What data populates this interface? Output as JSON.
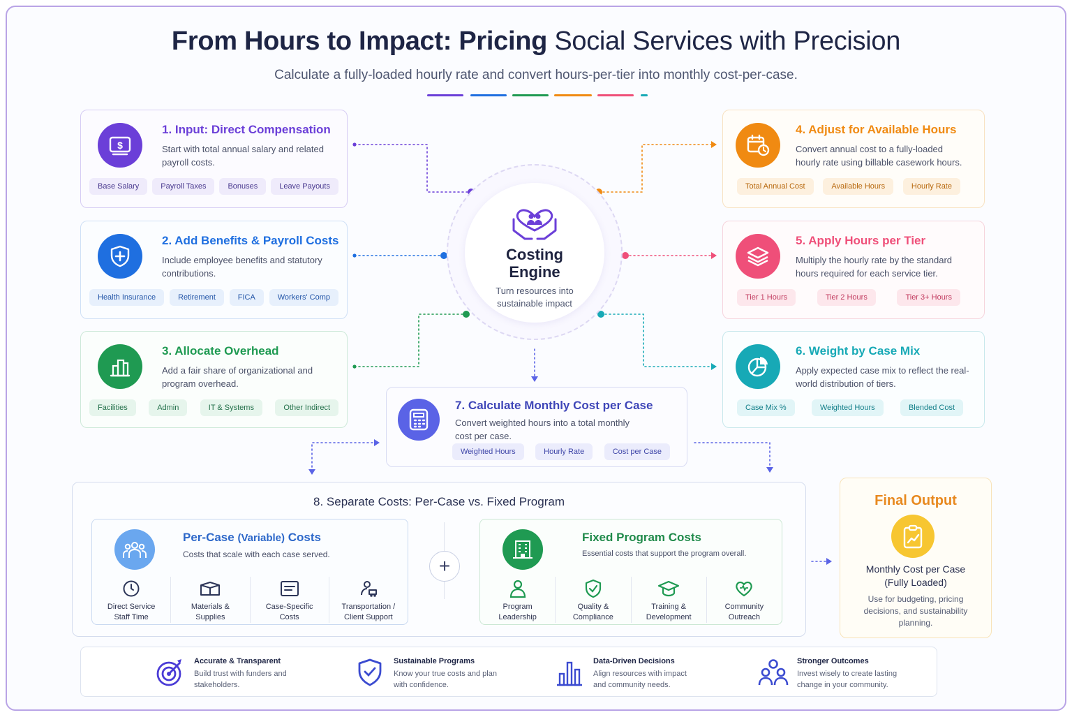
{
  "header": {
    "title_bold": "From Hours to Impact: Pricing",
    "title_light": "Social Services with Precision",
    "subtitle": "Calculate a fully-loaded hourly rate and convert hours-per-tier into monthly cost-per-case."
  },
  "colors": {
    "purple": "#6b3fd8",
    "blue": "#1f6fe0",
    "green": "#1f9a52",
    "orange": "#f08a12",
    "pink": "#ef4f79",
    "teal": "#17a9b6",
    "indigo": "#5a63e6"
  },
  "steps": [
    {
      "number": "1.",
      "title": "Input: Direct Compensation",
      "description": "Start with total annual salary and related payroll costs.",
      "icon": "money-icon",
      "chips": [
        "Base Salary",
        "Payroll Taxes",
        "Bonuses",
        "Leave Payouts"
      ]
    },
    {
      "number": "2.",
      "title": "Add Benefits & Payroll Costs",
      "description": "Include employee benefits and statutory contributions.",
      "icon": "shield-plus-icon",
      "chips": [
        "Health Insurance",
        "Retirement",
        "FICA",
        "Workers' Comp"
      ]
    },
    {
      "number": "3.",
      "title": "Allocate Overhead",
      "description": "Add a fair share of organizational and program overhead.",
      "icon": "building-icon",
      "chips": [
        "Facilities",
        "Admin",
        "IT & Systems",
        "Other Indirect"
      ]
    },
    {
      "number": "4.",
      "title": "Adjust for Available Hours",
      "description": "Convert annual cost to a fully-loaded hourly rate using billable casework hours.",
      "icon": "calendar-clock-icon",
      "chips": [
        "Total Annual Cost",
        "Available Hours",
        "Hourly Rate"
      ]
    },
    {
      "number": "5.",
      "title": "Apply Hours per Tier",
      "description": "Multiply the hourly rate by the standard hours required for each service tier.",
      "icon": "layers-icon",
      "chips": [
        "Tier 1 Hours",
        "Tier 2 Hours",
        "Tier 3+ Hours"
      ]
    },
    {
      "number": "6.",
      "title": "Weight by Case Mix",
      "description": "Apply expected case mix to reflect the real-world distribution of tiers.",
      "icon": "pie-chart-icon",
      "chips": [
        "Case Mix %",
        "Weighted Hours",
        "Blended Cost"
      ]
    },
    {
      "number": "7.",
      "title": "Calculate Monthly Cost per Case",
      "description": "Convert weighted hours into a total monthly cost per case.",
      "icon": "calculator-icon",
      "chips": [
        "Weighted Hours",
        "Hourly Rate",
        "Cost per Case"
      ]
    }
  ],
  "hub": {
    "title_line1": "Costing",
    "title_line2": "Engine",
    "description": "Turn resources into sustainable impact",
    "icon": "heart-hands-icon"
  },
  "section8": {
    "number": "8.",
    "title": "Separate Costs: Per-Case vs. Fixed Program",
    "variable": {
      "title_a": "Per-Case",
      "title_b": "(Variable)",
      "title_c": "Costs",
      "description": "Costs that scale with each case served.",
      "icon": "people-icon",
      "items": [
        {
          "line1": "Direct Service",
          "line2": "Staff Time",
          "icon": "clock-icon"
        },
        {
          "line1": "Materials &",
          "line2": "Supplies",
          "icon": "box-icon"
        },
        {
          "line1": "Case-Specific",
          "line2": "Costs",
          "icon": "document-icon"
        },
        {
          "line1": "Transportation /",
          "line2": "Client Support",
          "icon": "transport-icon"
        }
      ]
    },
    "plus_symbol": "+",
    "fixed": {
      "title": "Fixed Program Costs",
      "description": "Essential costs that support the program overall.",
      "icon": "office-building-icon",
      "items": [
        {
          "line1": "Program",
          "line2": "Leadership",
          "icon": "person-icon"
        },
        {
          "line1": "Quality &",
          "line2": "Compliance",
          "icon": "shield-check-icon"
        },
        {
          "line1": "Training &",
          "line2": "Development",
          "icon": "graduation-cap-icon"
        },
        {
          "line1": "Community",
          "line2": "Outreach",
          "icon": "heart-icon"
        }
      ]
    }
  },
  "final_output": {
    "title": "Final Output",
    "subtitle_line1": "Monthly Cost per Case",
    "subtitle_line2": "(Fully Loaded)",
    "description": "Use for budgeting, pricing decisions, and sustainability planning.",
    "icon": "clipboard-chart-icon"
  },
  "benefits": [
    {
      "title": "Accurate & Transparent",
      "description": "Build trust with funders and stakeholders.",
      "icon": "target-icon"
    },
    {
      "title": "Sustainable Programs",
      "description": "Know your true costs and plan with confidence.",
      "icon": "shield-check-icon"
    },
    {
      "title": "Data-Driven Decisions",
      "description": "Align resources with impact and community needs.",
      "icon": "bar-chart-icon"
    },
    {
      "title": "Stronger Outcomes",
      "description": "Invest wisely to create lasting change in your community.",
      "icon": "group-icon"
    }
  ]
}
